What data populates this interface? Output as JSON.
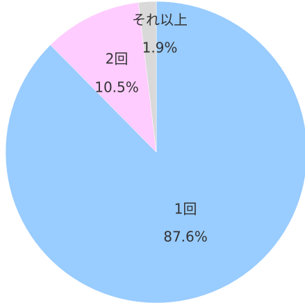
{
  "chart_data": {
    "type": "pie",
    "categories": [
      "1回",
      "2回",
      "それ以上"
    ],
    "values": [
      87.6,
      10.5,
      1.9
    ],
    "value_labels": [
      "87.6%",
      "10.5%",
      "1.9%"
    ],
    "colors": [
      "#99ccff",
      "#ffccff",
      "#d9d9d9"
    ]
  }
}
